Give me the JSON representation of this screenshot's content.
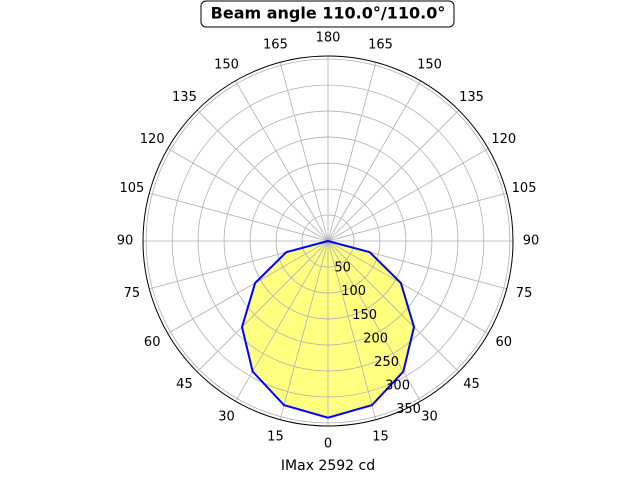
{
  "chart_data": {
    "type": "polar",
    "title": "Beam angle 110.0°/110.0°",
    "xlabel": "IMax 2592 cd",
    "rlim": [
      0,
      356
    ],
    "rticks": [
      50,
      100,
      150,
      200,
      250,
      300,
      350
    ],
    "thetaticks": [
      0,
      15,
      30,
      45,
      60,
      75,
      90,
      105,
      120,
      135,
      150,
      165,
      180,
      {
        "value": -15,
        "label": "15"
      },
      {
        "value": -30,
        "label": "30"
      },
      {
        "value": -45,
        "label": "45"
      },
      {
        "value": -60,
        "label": "60"
      },
      {
        "value": -75,
        "label": "75"
      },
      {
        "value": -90,
        "label": "90"
      },
      {
        "value": -105,
        "label": "105"
      },
      {
        "value": -120,
        "label": "120"
      },
      {
        "value": -135,
        "label": "135"
      },
      {
        "value": -150,
        "label": "150"
      },
      {
        "value": -165,
        "label": "165"
      }
    ],
    "grid": true,
    "series": [
      {
        "color": "#0000ff",
        "fill": "#ffff80",
        "theta": [
          -90,
          -75,
          -60,
          -45,
          -30,
          -15,
          0,
          15,
          30,
          45,
          60,
          75,
          90
        ],
        "values": [
          0,
          83,
          162,
          234,
          290,
          327,
          340,
          327,
          290,
          234,
          162,
          83,
          0
        ]
      }
    ]
  }
}
